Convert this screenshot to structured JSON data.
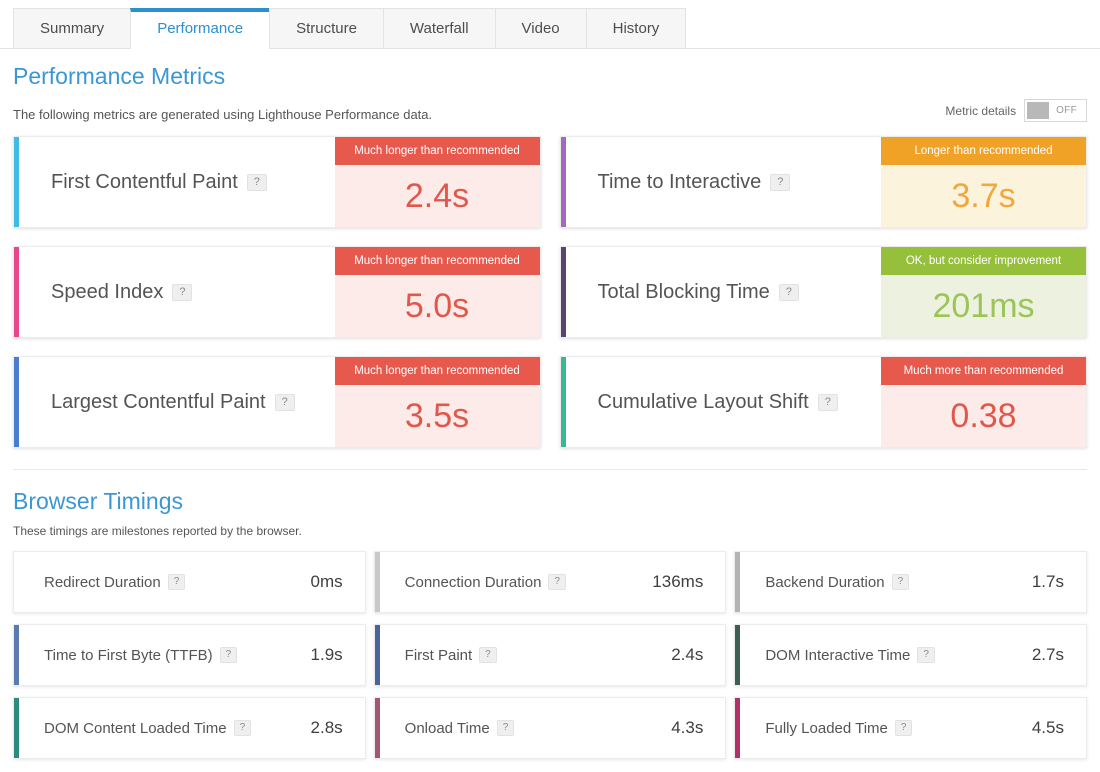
{
  "help_icon": "?",
  "colors": {
    "accent_blue": "#3b97d4",
    "active_tab_blue": "#2d8ed2",
    "status_danger": "#e8594d",
    "status_warning": "#f0a227",
    "status_ok": "#96c03c"
  },
  "tabs": [
    {
      "label": "Summary"
    },
    {
      "label": "Performance"
    },
    {
      "label": "Structure"
    },
    {
      "label": "Waterfall"
    },
    {
      "label": "Video"
    },
    {
      "label": "History"
    }
  ],
  "performance_metrics": {
    "title": "Performance Metrics",
    "subtitle": "The following metrics are generated using Lighthouse Performance data.",
    "metric_details_label": "Metric details",
    "toggle_state": "OFF",
    "cards": [
      {
        "label": "First Contentful Paint",
        "badge": "Much longer than recommended",
        "value": "2.4s",
        "accent": "#41bbe3",
        "badge_bg": "#e8594d",
        "value_color": "#e2574a",
        "panel_bg": "#fcebe9"
      },
      {
        "label": "Time to Interactive",
        "badge": "Longer than recommended",
        "value": "3.7s",
        "accent": "#a169c0",
        "badge_bg": "#f0a227",
        "value_color": "#f2a73b",
        "panel_bg": "#fcf3dc"
      },
      {
        "label": "Speed Index",
        "badge": "Much longer than recommended",
        "value": "5.0s",
        "accent": "#e8488b",
        "badge_bg": "#e8594d",
        "value_color": "#e2574a",
        "panel_bg": "#fcebe9"
      },
      {
        "label": "Total Blocking Time",
        "badge": "OK, but consider improvement",
        "value": "201ms",
        "accent": "#5e4272",
        "badge_bg": "#96c03c",
        "value_color": "#9cc456",
        "panel_bg": "#edf2e0"
      },
      {
        "label": "Largest Contentful Paint",
        "badge": "Much longer than recommended",
        "value": "3.5s",
        "accent": "#4a7cd0",
        "badge_bg": "#e8594d",
        "value_color": "#e2574a",
        "panel_bg": "#fcebe9"
      },
      {
        "label": "Cumulative Layout Shift",
        "badge": "Much more than recommended",
        "value": "0.38",
        "accent": "#36ba92",
        "badge_bg": "#e8594d",
        "value_color": "#e2574a",
        "panel_bg": "#fcebe9"
      }
    ]
  },
  "browser_timings": {
    "title": "Browser Timings",
    "subtitle": "These timings are milestones reported by the browser.",
    "cards": [
      {
        "label": "Redirect Duration",
        "value": "0ms"
      },
      {
        "label": "Connection Duration",
        "value": "136ms",
        "accent": "#c8c8c8"
      },
      {
        "label": "Backend Duration",
        "value": "1.7s",
        "accent": "#b3b3b3"
      },
      {
        "label": "Time to First Byte (TTFB)",
        "value": "1.9s",
        "accent": "#5a7ab0"
      },
      {
        "label": "First Paint",
        "value": "2.4s",
        "accent": "#48659e"
      },
      {
        "label": "DOM Interactive Time",
        "value": "2.7s",
        "accent": "#3d5f52"
      },
      {
        "label": "DOM Content Loaded Time",
        "value": "2.8s",
        "accent": "#2e8a7c"
      },
      {
        "label": "Onload Time",
        "value": "4.3s",
        "accent": "#a65672"
      },
      {
        "label": "Fully Loaded Time",
        "value": "4.5s",
        "accent": "#b23267"
      }
    ]
  }
}
